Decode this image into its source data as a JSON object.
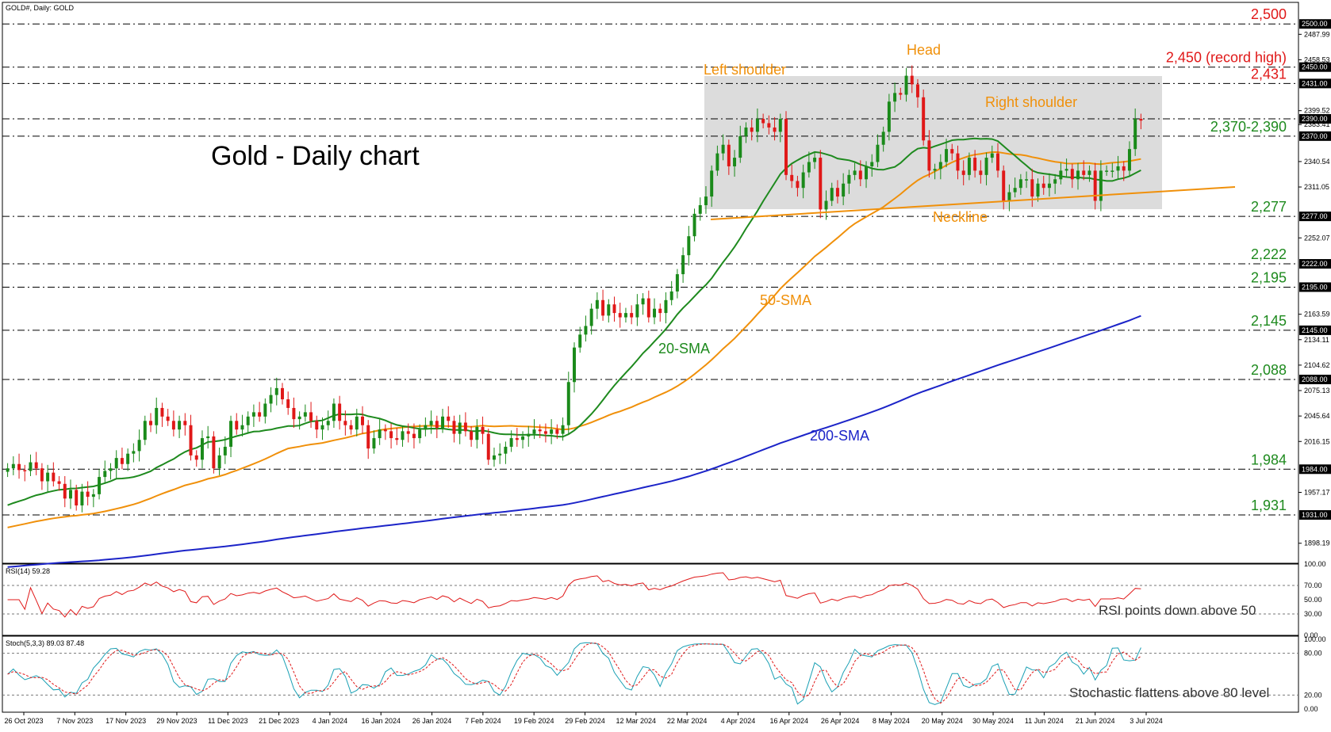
{
  "header": {
    "symbol_label": "GOLD#, Daily:  GOLD"
  },
  "colors": {
    "bull": "#1a8a1a",
    "bear": "#e01818",
    "wick_bull": "#1a8a1a",
    "wick_bear": "#e01818",
    "sma20": "#1e8a1e",
    "sma50": "#f0900a",
    "sma200": "#1c24c8",
    "level_red": "#e01818",
    "level_green": "#1e8a1e",
    "orange": "#f0900a",
    "rsi": "#e01818",
    "stoch_main": "#1aa0b4",
    "stoch_signal": "#e01818",
    "box_fill": "#dcdcdc",
    "text": "#000000",
    "grid": "#000000"
  },
  "annotations": {
    "title": "Gold - Daily chart",
    "left_shoulder": "Left shoulder",
    "head": "Head",
    "right_shoulder": "Right shoulder",
    "neckline": "Neckline",
    "sma20": "20-SMA",
    "sma50": "50-SMA",
    "sma200": "200-SMA",
    "rsi_note": "RSI points down above 50",
    "stoch_note": "Stochastic flattens above 80 level"
  },
  "levels": [
    {
      "value": 2500,
      "label": "2,500",
      "color": "red",
      "price_tag": "2500.00"
    },
    {
      "value": 2450,
      "label": "2,450 (record high)",
      "color": "red",
      "price_tag": "2450.00"
    },
    {
      "value": 2431,
      "label": "2,431",
      "color": "red",
      "price_tag": "2431.00"
    },
    {
      "value": 2390,
      "label": "",
      "color": "green",
      "price_tag": "2390.00"
    },
    {
      "value": 2370,
      "label": "2,370-2,390",
      "color": "green",
      "price_tag": "2370.00"
    },
    {
      "value": 2277,
      "label": "2,277",
      "color": "green",
      "price_tag": "2277.00"
    },
    {
      "value": 2222,
      "label": "2,222",
      "color": "green",
      "price_tag": "2222.00"
    },
    {
      "value": 2195,
      "label": "2,195",
      "color": "green",
      "price_tag": "2195.00"
    },
    {
      "value": 2145,
      "label": "2,145",
      "color": "green",
      "price_tag": "2145.00"
    },
    {
      "value": 2088,
      "label": "2,088",
      "color": "green",
      "price_tag": "2088.00"
    },
    {
      "value": 1984,
      "label": "1,984",
      "color": "green",
      "price_tag": "1984.00"
    },
    {
      "value": 1931,
      "label": "1,931",
      "color": "green",
      "price_tag": "1931.00"
    }
  ],
  "price_axis_ticks": [
    "2487.99",
    "2458.53",
    "2399.52",
    "2383.41",
    "2340.54",
    "2311.05",
    "2252.07",
    "2163.59",
    "2134.11",
    "2104.62",
    "2075.13",
    "2045.64",
    "2016.15",
    "1957.17",
    "1898.19"
  ],
  "rsi_panel": {
    "label": "RSI(14) 59.28",
    "ticks": [
      "100.00",
      "70.00",
      "50.00",
      "30.00",
      "0.00"
    ]
  },
  "stoch_panel": {
    "label": "Stoch(5,3,3) 89.03 87.48",
    "ticks": [
      "100.00",
      "80.00",
      "20.00",
      "0.00"
    ]
  },
  "date_labels": [
    "26 Oct 2023",
    "7 Nov 2023",
    "17 Nov 2023",
    "29 Nov 2023",
    "11 Dec 2023",
    "21 Dec 2023",
    "4 Jan 2024",
    "16 Jan 2024",
    "26 Jan 2024",
    "7 Feb 2024",
    "19 Feb 2024",
    "29 Feb 2024",
    "12 Mar 2024",
    "22 Mar 2024",
    "4 Apr 2024",
    "16 Apr 2024",
    "26 Apr 2024",
    "8 May 2024",
    "20 May 2024",
    "30 May 2024",
    "11 Jun 2024",
    "21 Jun 2024",
    "3 Jul 2024"
  ],
  "chart_data": {
    "type": "line",
    "title": "Gold - Daily chart",
    "ylim": [
      1875,
      2525
    ],
    "date_ticks": [
      "26 Oct 2023",
      "7 Nov 2023",
      "17 Nov 2023",
      "29 Nov 2023",
      "11 Dec 2023",
      "21 Dec 2023",
      "4 Jan 2024",
      "16 Jan 2024",
      "26 Jan 2024",
      "7 Feb 2024",
      "19 Feb 2024",
      "29 Feb 2024",
      "12 Mar 2024",
      "22 Mar 2024",
      "4 Apr 2024",
      "16 Apr 2024",
      "26 Apr 2024",
      "8 May 2024",
      "20 May 2024",
      "30 May 2024",
      "11 Jun 2024",
      "21 Jun 2024",
      "3 Jul 2024"
    ],
    "close": [
      1985,
      1990,
      1983,
      1982,
      1992,
      1985,
      1970,
      1980,
      1970,
      1967,
      1950,
      1960,
      1942,
      1958,
      1952,
      1955,
      1975,
      1982,
      1985,
      1997,
      1990,
      2002,
      2005,
      2018,
      2040,
      2035,
      2055,
      2045,
      2040,
      2030,
      2040,
      2035,
      2000,
      1995,
      2020,
      2022,
      1985,
      2000,
      2010,
      2040,
      2030,
      2035,
      2045,
      2050,
      2045,
      2060,
      2070,
      2078,
      2065,
      2055,
      2042,
      2045,
      2050,
      2040,
      2030,
      2035,
      2040,
      2060,
      2040,
      2035,
      2030,
      2045,
      2035,
      2008,
      2020,
      2030,
      2028,
      2020,
      2018,
      2028,
      2025,
      2020,
      2030,
      2035,
      2040,
      2032,
      2045,
      2040,
      2025,
      2038,
      2028,
      2018,
      2033,
      2025,
      1995,
      2000,
      2002,
      2010,
      2020,
      2018,
      2022,
      2025,
      2030,
      2028,
      2025,
      2030,
      2025,
      2035,
      2085,
      2125,
      2140,
      2150,
      2170,
      2180,
      2162,
      2175,
      2165,
      2160,
      2165,
      2160,
      2175,
      2182,
      2160,
      2170,
      2165,
      2180,
      2190,
      2210,
      2232,
      2254,
      2280,
      2290,
      2300,
      2330,
      2350,
      2360,
      2335,
      2345,
      2370,
      2380,
      2375,
      2390,
      2385,
      2380,
      2375,
      2390,
      2325,
      2318,
      2310,
      2328,
      2340,
      2345,
      2285,
      2295,
      2310,
      2300,
      2315,
      2325,
      2330,
      2320,
      2335,
      2340,
      2360,
      2375,
      2410,
      2420,
      2418,
      2440,
      2430,
      2415,
      2365,
      2330,
      2332,
      2340,
      2355,
      2350,
      2330,
      2325,
      2345,
      2330,
      2325,
      2345,
      2350,
      2330,
      2295,
      2305,
      2310,
      2320,
      2320,
      2300,
      2315,
      2310,
      2315,
      2320,
      2330,
      2332,
      2320,
      2330,
      2325,
      2330,
      2295,
      2330,
      2330,
      2330,
      2335,
      2330,
      2355,
      2390,
      2388
    ]
  }
}
